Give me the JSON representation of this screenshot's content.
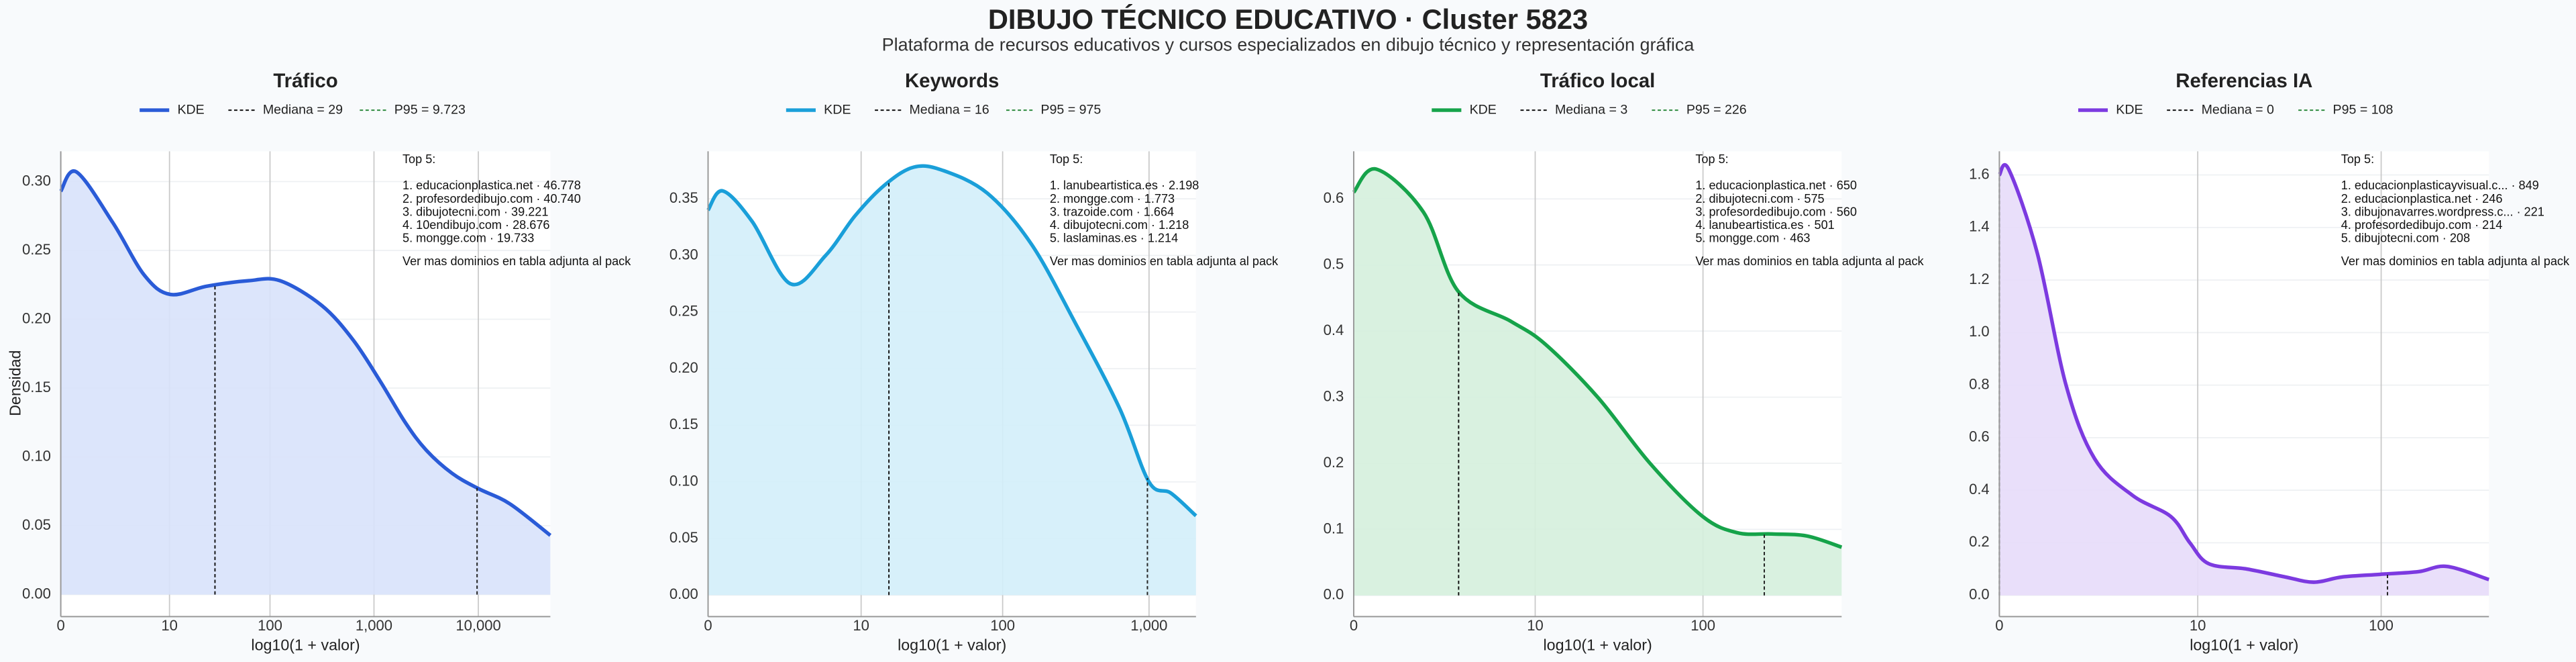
{
  "title": "DIBUJO TÉCNICO EDUCATIVO · Cluster 5823",
  "subtitle": "Plataforma de recursos educativos y cursos especializados en dibujo técnico y representación gráfica",
  "chart_data": [
    {
      "type": "area",
      "title": "Tráfico",
      "xlabel": "log10(1 + valor)",
      "ylabel": "Densidad",
      "series": [
        {
          "name": "KDE",
          "color": "#2a5bd7",
          "fill": "#d8e2fb",
          "x": [
            0,
            0.15,
            0.5,
            0.8,
            1.05,
            1.4,
            1.8,
            2.1,
            2.5,
            2.8,
            3.06,
            3.3,
            3.5,
            3.75,
            4.0,
            4.3,
            4.69
          ],
          "values": [
            0.293,
            0.307,
            0.27,
            0.232,
            0.218,
            0.224,
            0.228,
            0.228,
            0.21,
            0.185,
            0.155,
            0.125,
            0.105,
            0.088,
            0.077,
            0.066,
            0.043
          ]
        }
      ],
      "median": 29,
      "median_label": "Mediana = 29",
      "median_color": "#111111",
      "p95": 9723,
      "p95_label": "P95 = 9.723",
      "p95_color": "#2e8b3e",
      "xlim": [
        0,
        4.69
      ],
      "ylim": [
        -0.016,
        0.322
      ],
      "xticks": [
        0,
        {
          "value": 1.0414,
          "label": "10"
        },
        {
          "value": 2.0043,
          "label": "100"
        },
        {
          "value": 3.0004,
          "label": "1,000"
        },
        {
          "value": 4.0,
          "label": "10,000"
        }
      ],
      "yticks": [
        {
          "value": 0,
          "label": "0.00"
        },
        0.05,
        {
          "value": 0.1,
          "label": "0.10"
        },
        0.15,
        {
          "value": 0.2,
          "label": "0.20"
        },
        0.25,
        {
          "value": 0.3,
          "label": "0.30"
        }
      ],
      "annotation": {
        "heading": "Top 5:",
        "items": [
          "1. educacionplastica.net · 46.778",
          "2. profesordedibujo.com · 40.740",
          "3. dibujotecni.com · 39.221",
          "4. 10endibujo.com · 28.676",
          "5. mongge.com · 19.733"
        ],
        "footer": "Ver mas dominios en tabla adjunta al pack"
      }
    },
    {
      "type": "area",
      "title": "Keywords",
      "xlabel": "log10(1 + valor)",
      "series": [
        {
          "name": "KDE",
          "color": "#1a9fd9",
          "fill": "#d3eefa",
          "x": [
            0,
            0.1,
            0.3,
            0.56,
            0.8,
            1.0,
            1.2,
            1.4,
            1.6,
            1.9,
            2.2,
            2.5,
            2.8,
            3.0,
            3.15,
            3.32
          ],
          "values": [
            0.34,
            0.357,
            0.33,
            0.275,
            0.3,
            0.335,
            0.362,
            0.378,
            0.375,
            0.355,
            0.31,
            0.24,
            0.165,
            0.1,
            0.09,
            0.07
          ]
        }
      ],
      "median": 16,
      "median_label": "Mediana = 16",
      "median_color": "#111111",
      "p95": 975,
      "p95_label": "P95 = 975",
      "p95_color": "#2e8b3e",
      "xlim": [
        0,
        3.32
      ],
      "ylim": [
        -0.019,
        0.392
      ],
      "xticks": [
        0,
        {
          "value": 1.0414,
          "label": "10"
        },
        {
          "value": 2.0043,
          "label": "100"
        },
        {
          "value": 3.0004,
          "label": "1,000"
        }
      ],
      "yticks": [
        {
          "value": 0,
          "label": "0.00"
        },
        0.05,
        {
          "value": 0.1,
          "label": "0.10"
        },
        0.15,
        {
          "value": 0.2,
          "label": "0.20"
        },
        0.25,
        {
          "value": 0.3,
          "label": "0.30"
        },
        0.35
      ],
      "annotation": {
        "heading": "Top 5:",
        "items": [
          "1. lanubeartistica.es · 2.198",
          "2. mongge.com · 1.773",
          "3. trazoide.com · 1.664",
          "4. dibujotecni.com · 1.218",
          "5. laslaminas.es · 1.214"
        ],
        "footer": "Ver mas dominios en tabla adjunta al pack"
      }
    },
    {
      "type": "area",
      "title": "Tráfico local",
      "xlabel": "log10(1 + valor)",
      "series": [
        {
          "name": "KDE",
          "color": "#16a34a",
          "fill": "#d5efdd",
          "x": [
            0,
            0.13,
            0.4,
            0.6,
            0.9,
            1.1,
            1.4,
            1.7,
            2.0,
            2.2,
            2.4,
            2.6,
            2.8
          ],
          "values": [
            0.61,
            0.645,
            0.58,
            0.46,
            0.415,
            0.38,
            0.3,
            0.2,
            0.12,
            0.095,
            0.093,
            0.09,
            0.073
          ]
        }
      ],
      "median": 3,
      "median_label": "Mediana = 3",
      "median_color": "#111111",
      "p95": 226,
      "p95_label": "P95 = 226",
      "p95_color": "#2e8b3e",
      "xlim": [
        0,
        2.8
      ],
      "ylim": [
        -0.032,
        0.672
      ],
      "xticks": [
        0,
        {
          "value": 1.0414,
          "label": "10"
        },
        {
          "value": 2.0043,
          "label": "100"
        }
      ],
      "yticks": [
        {
          "value": 0,
          "label": "0.0"
        },
        0.1,
        0.2,
        0.3,
        0.4,
        0.5,
        0.6
      ],
      "annotation": {
        "heading": "Top 5:",
        "items": [
          "1. educacionplastica.net · 650",
          "2. dibujotecni.com · 575",
          "3. profesordedibujo.com · 560",
          "4. lanubeartistica.es · 501",
          "5. mongge.com · 463"
        ],
        "footer": "Ver mas dominios en tabla adjunta al pack"
      }
    },
    {
      "type": "area",
      "title": "Referencias IA",
      "xlabel": "log10(1 + valor)",
      "series": [
        {
          "name": "KDE",
          "color": "#7c3ae0",
          "fill": "#e7dcfa",
          "x": [
            0,
            0.05,
            0.2,
            0.35,
            0.5,
            0.7,
            0.9,
            1.0,
            1.1,
            1.3,
            1.5,
            1.65,
            1.8,
            2.0,
            2.2,
            2.35,
            2.57
          ],
          "values": [
            1.6,
            1.62,
            1.3,
            0.8,
            0.52,
            0.38,
            0.3,
            0.2,
            0.12,
            0.1,
            0.07,
            0.05,
            0.07,
            0.08,
            0.09,
            0.11,
            0.06
          ]
        }
      ],
      "median": 0,
      "median_label": "Mediana = 0",
      "median_color": "#111111",
      "p95": 108,
      "p95_label": "P95 = 108",
      "p95_color": "#2e8b3e",
      "xlim": [
        0,
        2.57
      ],
      "ylim": [
        -0.081,
        1.69
      ],
      "xticks": [
        0,
        {
          "value": 1.0414,
          "label": "10"
        },
        {
          "value": 2.0043,
          "label": "100"
        }
      ],
      "yticks": [
        {
          "value": 0,
          "label": "0.0"
        },
        0.2,
        0.4,
        0.6,
        0.8,
        {
          "value": 1,
          "label": "1.0"
        },
        1.2,
        1.4,
        1.6
      ],
      "annotation": {
        "heading": "Top 5:",
        "items": [
          "1. educacionplasticayvisual.c... · 849",
          "2. educacionplastica.net · 246",
          "3. dibujonavarres.wordpress.c... · 221",
          "4. profesordedibujo.com · 214",
          "5. dibujotecni.com · 208"
        ],
        "footer": "Ver mas dominios en tabla adjunta al pack"
      }
    }
  ]
}
